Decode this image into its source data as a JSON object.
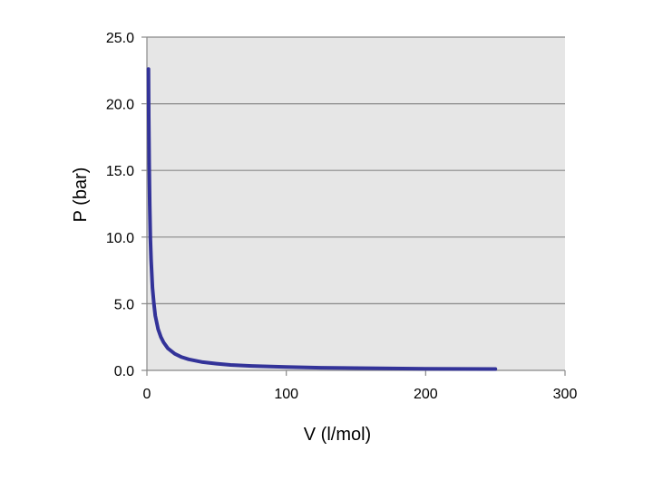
{
  "chart_data": {
    "type": "line",
    "title": "",
    "xlabel": "V (l/mol)",
    "ylabel": "P (bar)",
    "xlim": [
      0,
      300
    ],
    "ylim": [
      0,
      25
    ],
    "x_ticks": [
      "0",
      "100",
      "200",
      "300"
    ],
    "y_ticks": [
      "0.0",
      "5.0",
      "10.0",
      "15.0",
      "20.0",
      "25.0"
    ],
    "grid": "horizontal",
    "legend": "none",
    "colors": {
      "plot_background": "#e6e6e6",
      "line": "#333399",
      "gridline": "#888888"
    },
    "series": [
      {
        "x": [
          1.1,
          1.3,
          1.6,
          2,
          2.5,
          3,
          4,
          5,
          6,
          8,
          10,
          12,
          15,
          20,
          25,
          30,
          40,
          50,
          60,
          75,
          100,
          125,
          150,
          175,
          200,
          225,
          250
        ],
        "y": [
          22.6,
          19.1,
          15.5,
          12.4,
          9.9,
          8.3,
          6.2,
          5.0,
          4.1,
          3.1,
          2.5,
          2.1,
          1.65,
          1.24,
          0.99,
          0.83,
          0.62,
          0.5,
          0.41,
          0.33,
          0.25,
          0.2,
          0.17,
          0.14,
          0.12,
          0.11,
          0.1
        ]
      }
    ]
  }
}
